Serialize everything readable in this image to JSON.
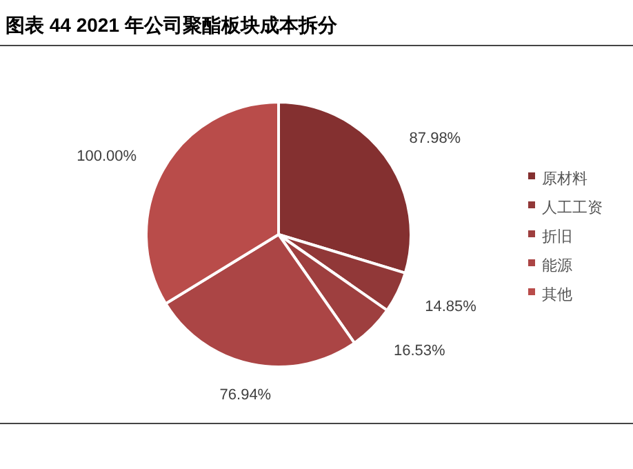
{
  "chart_data": {
    "type": "pie",
    "title": "图表 44 2021 年公司聚酯板块成本拆分",
    "categories": [
      "原材料",
      "人工工资",
      "折旧",
      "能源",
      "其他"
    ],
    "values": [
      87.98,
      14.85,
      16.53,
      76.94,
      100.0
    ],
    "value_labels": [
      "87.98%",
      "14.85%",
      "16.53%",
      "76.94%",
      "100.00%"
    ],
    "colors": [
      "#843030",
      "#913838",
      "#9e3f3f",
      "#ab4545",
      "#b94c4a"
    ],
    "legend": "right"
  }
}
